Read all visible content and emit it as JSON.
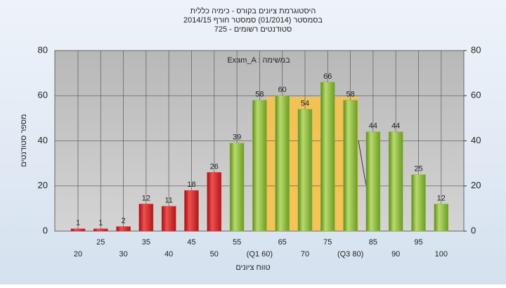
{
  "chart_data": {
    "type": "bar",
    "title": "היסטוגרמת ציונים בקורס - כימיה כללית",
    "subtitle": "בסמסטר  (01/2014)  סמסטר חורף 2014/15",
    "subtitle2": "סטודנטים רשומים - 725",
    "annotation": "Exam_A : במשימה",
    "x_label": "טווח ציונים",
    "y_label": "מספר סטודנטים",
    "categories": [
      "20",
      "25",
      "30",
      "35",
      "40",
      "45",
      "50",
      "55",
      "(Q1 60)",
      "65",
      "70",
      "75",
      "(Q3 80)",
      "85",
      "90",
      "95",
      "100"
    ],
    "values": [
      1,
      1,
      2,
      12,
      11,
      18,
      26,
      39,
      58,
      60,
      54,
      66,
      58,
      44,
      44,
      25,
      12
    ],
    "colors": [
      "#e02828",
      "#e02828",
      "#e02828",
      "#e02828",
      "#e02828",
      "#e02828",
      "#e02828",
      "#8cb83a",
      "#8cb83a",
      "#8cb83a",
      "#8cb83a",
      "#8cb83a",
      "#8cb83a",
      "#8cb83a",
      "#8cb83a",
      "#8cb83a",
      "#8cb83a"
    ],
    "ylim": [
      0,
      80
    ],
    "yticks": [
      0,
      20,
      40,
      60,
      80
    ],
    "y2lim": [
      0,
      80
    ],
    "y2ticks": [
      0,
      20,
      40,
      60,
      80
    ],
    "grid": true
  }
}
